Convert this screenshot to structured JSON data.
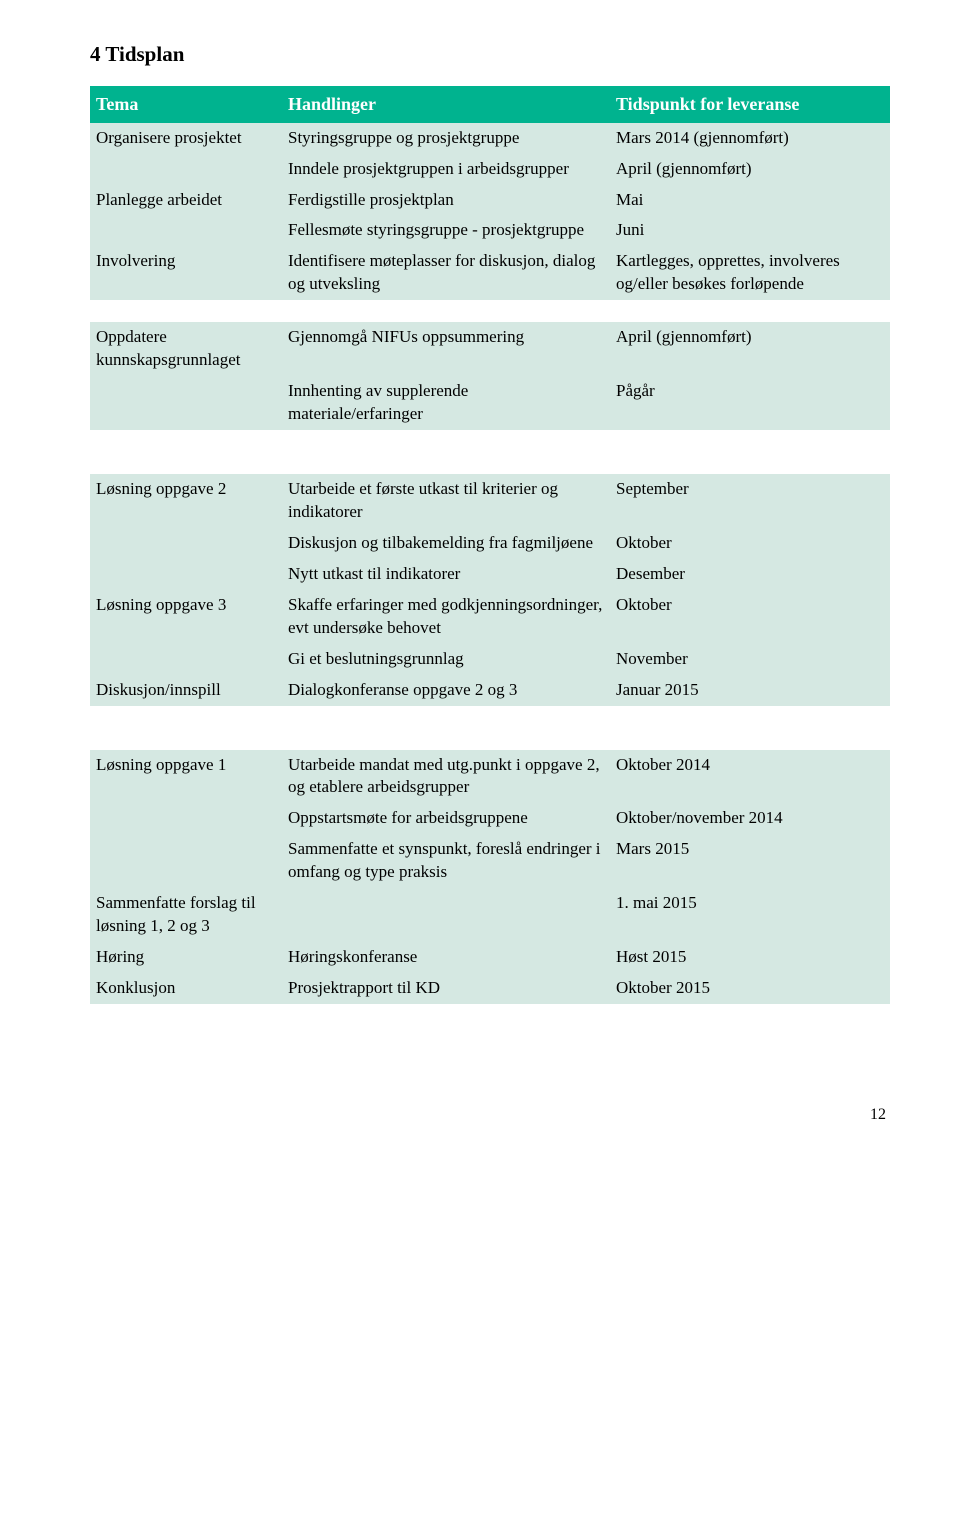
{
  "section_title": "4  Tidsplan",
  "headers": {
    "c1": "Tema",
    "c2": "Handlinger",
    "c3": "Tidspunkt for leveranse"
  },
  "block1": {
    "r1": {
      "a": "Organisere prosjektet",
      "b": "Styringsgruppe og prosjektgruppe",
      "c": "Mars 2014 (gjennomført)"
    },
    "r2": {
      "a": "",
      "b": "Inndele prosjektgruppen i arbeidsgrupper",
      "c": "April (gjennomført)"
    },
    "r3": {
      "a": "Planlegge arbeidet",
      "b": "Ferdigstille prosjektplan",
      "c": "Mai"
    },
    "r4": {
      "a": "",
      "b": "Fellesmøte styringsgruppe - prosjektgruppe",
      "c": "Juni"
    },
    "r5": {
      "a": "Involvering",
      "b": "Identifisere møteplasser for diskusjon, dialog og utveksling",
      "c": "Kartlegges, opprettes, involveres og/eller besøkes forløpende"
    }
  },
  "block2": {
    "r1": {
      "a": "Oppdatere kunnskapsgrunnlaget",
      "b": "Gjennomgå NIFUs oppsummering",
      "c": "April (gjennomført)"
    },
    "r2": {
      "a": "",
      "b": "Innhenting av supplerende materiale/erfaringer",
      "c": "Pågår"
    }
  },
  "block3": {
    "r1": {
      "a": "Løsning oppgave 2",
      "b": "Utarbeide et første utkast til kriterier og indikatorer",
      "c": "September"
    },
    "r2": {
      "a": "",
      "b": "Diskusjon og tilbakemelding fra fagmiljøene",
      "c": "Oktober"
    },
    "r3": {
      "a": "",
      "b": "Nytt utkast til indikatorer",
      "c": "Desember"
    },
    "r4": {
      "a": "Løsning oppgave 3",
      "b": "Skaffe erfaringer med godkjenningsordninger, evt undersøke behovet",
      "c": "Oktober"
    },
    "r5": {
      "a": "",
      "b": "Gi et beslutningsgrunnlag",
      "c": "November"
    },
    "r6": {
      "a": "Diskusjon/innspill",
      "b": "Dialogkonferanse oppgave 2 og 3",
      "c": "Januar 2015"
    }
  },
  "block4": {
    "r1": {
      "a": "Løsning oppgave 1",
      "b": "Utarbeide mandat med utg.punkt i oppgave 2, og etablere arbeidsgrupper",
      "c": "Oktober 2014"
    },
    "r2": {
      "a": "",
      "b": "Oppstartsmøte for arbeidsgruppene",
      "c": "Oktober/november 2014"
    },
    "r3": {
      "a": "",
      "b": "Sammenfatte et synspunkt, foreslå endringer i omfang og type praksis",
      "c": "Mars 2015"
    },
    "r4": {
      "a": "Sammenfatte forslag til løsning 1, 2 og 3",
      "b": "",
      "c": "1. mai 2015"
    },
    "r5": {
      "a": "Høring",
      "b": "Høringskonferanse",
      "c": "Høst 2015"
    },
    "r6": {
      "a": "Konklusjon",
      "b": "Prosjektrapport til KD",
      "c": "Oktober 2015"
    }
  },
  "page_number": "12"
}
